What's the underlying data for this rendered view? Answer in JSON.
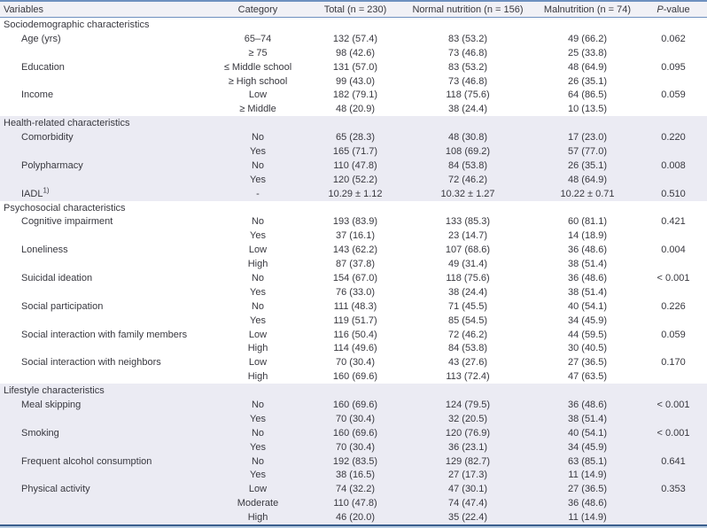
{
  "table": {
    "columns": {
      "variables": "Variables",
      "category": "Category",
      "total": "Total (n = 230)",
      "normal": "Normal nutrition (n = 156)",
      "malnutrition": "Malnutrition (n = 74)",
      "pvalue_italic": "P",
      "pvalue_rest": "-value"
    },
    "colors": {
      "rule_top": "#6e90bf",
      "rule_bottom_dark": "#3a5f8e",
      "rule_bottom_light": "#b7cce2",
      "header_bg": "#f1f1f6",
      "section_shade": "#ebebf3",
      "text": "#38383f"
    },
    "sections": [
      {
        "label": "Sociodemographic characteristics",
        "shaded": false,
        "rows": [
          {
            "variable": "Age (yrs)",
            "category": "65–74",
            "total": "132 (57.4)",
            "normal": "83 (53.2)",
            "malnutrition": "49 (66.2)",
            "pvalue": "0.062"
          },
          {
            "variable": "",
            "category": "≥ 75",
            "total": "98 (42.6)",
            "normal": "73 (46.8)",
            "malnutrition": "25 (33.8)",
            "pvalue": ""
          },
          {
            "variable": "Education",
            "category": "≤ Middle school",
            "total": "131 (57.0)",
            "normal": "83 (53.2)",
            "malnutrition": "48 (64.9)",
            "pvalue": "0.095"
          },
          {
            "variable": "",
            "category": "≥ High school",
            "total": "99 (43.0)",
            "normal": "73 (46.8)",
            "malnutrition": "26 (35.1)",
            "pvalue": ""
          },
          {
            "variable": "Income",
            "category": "Low",
            "total": "182 (79.1)",
            "normal": "118 (75.6)",
            "malnutrition": "64 (86.5)",
            "pvalue": "0.059"
          },
          {
            "variable": "",
            "category": "≥ Middle",
            "total": "48 (20.9)",
            "normal": "38 (24.4)",
            "malnutrition": "10 (13.5)",
            "pvalue": ""
          }
        ]
      },
      {
        "label": "Health-related characteristics",
        "shaded": true,
        "rows": [
          {
            "variable": "Comorbidity",
            "category": "No",
            "total": "65 (28.3)",
            "normal": "48 (30.8)",
            "malnutrition": "17 (23.0)",
            "pvalue": "0.220"
          },
          {
            "variable": "",
            "category": "Yes",
            "total": "165 (71.7)",
            "normal": "108 (69.2)",
            "malnutrition": "57 (77.0)",
            "pvalue": ""
          },
          {
            "variable": "Polypharmacy",
            "category": "No",
            "total": "110 (47.8)",
            "normal": "84 (53.8)",
            "malnutrition": "26 (35.1)",
            "pvalue": "0.008"
          },
          {
            "variable": "",
            "category": "Yes",
            "total": "120 (52.2)",
            "normal": "72 (46.2)",
            "malnutrition": "48 (64.9)",
            "pvalue": ""
          },
          {
            "variable": "IADL",
            "variable_sup": "1)",
            "category": "-",
            "total": "10.29 ± 1.12",
            "normal": "10.32 ± 1.27",
            "malnutrition": "10.22 ± 0.71",
            "pvalue": "0.510"
          }
        ]
      },
      {
        "label": "Psychosocial characteristics",
        "shaded": false,
        "rows": [
          {
            "variable": "Cognitive impairment",
            "category": "No",
            "total": "193 (83.9)",
            "normal": "133 (85.3)",
            "malnutrition": "60 (81.1)",
            "pvalue": "0.421"
          },
          {
            "variable": "",
            "category": "Yes",
            "total": "37 (16.1)",
            "normal": "23 (14.7)",
            "malnutrition": "14 (18.9)",
            "pvalue": ""
          },
          {
            "variable": "Loneliness",
            "category": "Low",
            "total": "143 (62.2)",
            "normal": "107 (68.6)",
            "malnutrition": "36 (48.6)",
            "pvalue": "0.004"
          },
          {
            "variable": "",
            "category": "High",
            "total": "87 (37.8)",
            "normal": "49 (31.4)",
            "malnutrition": "38 (51.4)",
            "pvalue": ""
          },
          {
            "variable": "Suicidal ideation",
            "category": "No",
            "total": "154 (67.0)",
            "normal": "118 (75.6)",
            "malnutrition": "36 (48.6)",
            "pvalue": "< 0.001"
          },
          {
            "variable": "",
            "category": "Yes",
            "total": "76 (33.0)",
            "normal": "38 (24.4)",
            "malnutrition": "38 (51.4)",
            "pvalue": ""
          },
          {
            "variable": "Social participation",
            "category": "No",
            "total": "111 (48.3)",
            "normal": "71 (45.5)",
            "malnutrition": "40 (54.1)",
            "pvalue": "0.226"
          },
          {
            "variable": "",
            "category": "Yes",
            "total": "119 (51.7)",
            "normal": "85 (54.5)",
            "malnutrition": "34 (45.9)",
            "pvalue": ""
          },
          {
            "variable": "Social interaction with family members",
            "category": "Low",
            "total": "116 (50.4)",
            "normal": "72 (46.2)",
            "malnutrition": "44 (59.5)",
            "pvalue": "0.059"
          },
          {
            "variable": "",
            "category": "High",
            "total": "114 (49.6)",
            "normal": "84 (53.8)",
            "malnutrition": "30 (40.5)",
            "pvalue": ""
          },
          {
            "variable": "Social interaction with neighbors",
            "category": "Low",
            "total": "70 (30.4)",
            "normal": "43 (27.6)",
            "malnutrition": "27 (36.5)",
            "pvalue": "0.170"
          },
          {
            "variable": "",
            "category": "High",
            "total": "160 (69.6)",
            "normal": "113 (72.4)",
            "malnutrition": "47 (63.5)",
            "pvalue": ""
          }
        ]
      },
      {
        "label": "Lifestyle characteristics",
        "shaded": true,
        "rows": [
          {
            "variable": "Meal skipping",
            "category": "No",
            "total": "160 (69.6)",
            "normal": "124 (79.5)",
            "malnutrition": "36 (48.6)",
            "pvalue": "< 0.001"
          },
          {
            "variable": "",
            "category": "Yes",
            "total": "70 (30.4)",
            "normal": "32 (20.5)",
            "malnutrition": "38 (51.4)",
            "pvalue": ""
          },
          {
            "variable": "Smoking",
            "category": "No",
            "total": "160 (69.6)",
            "normal": "120 (76.9)",
            "malnutrition": "40 (54.1)",
            "pvalue": "< 0.001"
          },
          {
            "variable": "",
            "category": "Yes",
            "total": "70 (30.4)",
            "normal": "36 (23.1)",
            "malnutrition": "34 (45.9)",
            "pvalue": ""
          },
          {
            "variable": "Frequent alcohol consumption",
            "category": "No",
            "total": "192 (83.5)",
            "normal": "129 (82.7)",
            "malnutrition": "63 (85.1)",
            "pvalue": "0.641"
          },
          {
            "variable": "",
            "category": "Yes",
            "total": "38 (16.5)",
            "normal": "27 (17.3)",
            "malnutrition": "11 (14.9)",
            "pvalue": ""
          },
          {
            "variable": "Physical activity",
            "category": "Low",
            "total": "74 (32.2)",
            "normal": "47 (30.1)",
            "malnutrition": "27 (36.5)",
            "pvalue": "0.353"
          },
          {
            "variable": "",
            "category": "Moderate",
            "total": "110 (47.8)",
            "normal": "74 (47.4)",
            "malnutrition": "36 (48.6)",
            "pvalue": ""
          },
          {
            "variable": "",
            "category": "High",
            "total": "46 (20.0)",
            "normal": "35 (22.4)",
            "malnutrition": "11 (14.9)",
            "pvalue": ""
          }
        ]
      }
    ]
  }
}
